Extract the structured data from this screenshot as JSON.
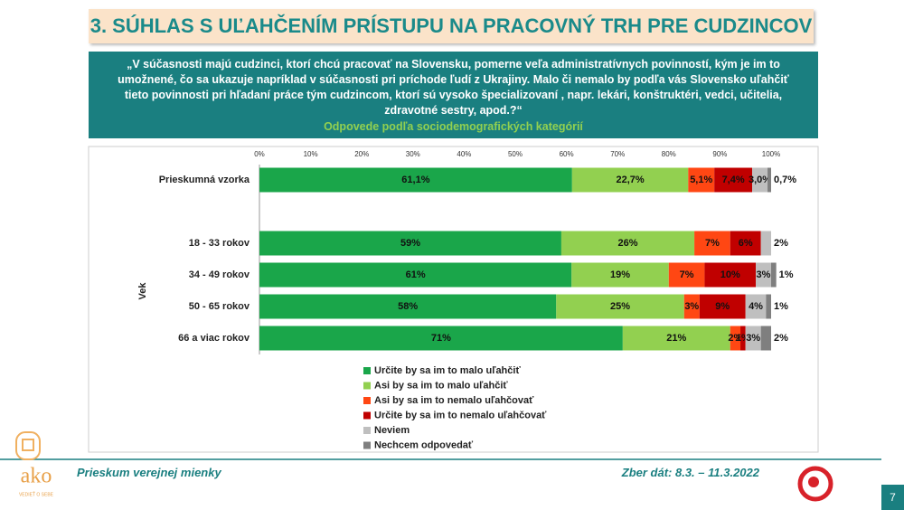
{
  "header": {
    "title": "3. SÚHLAS S UĽAHČENÍM PRÍSTUPU NA PRACOVNÝ TRH PRE CUDZINCOV",
    "question": "„V súčasnosti majú cudzinci, ktorí chcú pracovať na Slovensku, pomerne veľa administratívnych povinností, kým je im to umožnené, čo sa ukazuje napríklad v súčasnosti pri príchode ľudí z Ukrajiny. Malo či nemalo by podľa vás Slovensko uľahčiť tieto povinnosti pri hľadaní práce tým cudzincom, ktorí sú vysoko špecializovaní , napr. lekári, konštruktéri, vedci, učitelia, zdravotné sestry, apod.?“",
    "subtitle": "Odpovede podľa sociodemografických kategórií"
  },
  "chart_data": {
    "type": "bar",
    "orientation": "horizontal",
    "stacked": true,
    "categories": [
      "Prieskumná vzorka",
      null,
      "18 - 33 rokov",
      "34 - 49 rokov",
      "50 - 65 rokov",
      "66 a viac rokov"
    ],
    "group_label": "Vek",
    "xlim": [
      0,
      100
    ],
    "xticks": [
      {
        "value": 0,
        "label": "0%"
      },
      {
        "value": 10,
        "label": "10%"
      },
      {
        "value": 20,
        "label": "20%"
      },
      {
        "value": 30,
        "label": "30%"
      },
      {
        "value": 40,
        "label": "40%"
      },
      {
        "value": 50,
        "label": "50%"
      },
      {
        "value": 60,
        "label": "60%"
      },
      {
        "value": 70,
        "label": "70%"
      },
      {
        "value": 80,
        "label": "80%"
      },
      {
        "value": 90,
        "label": "90%"
      },
      {
        "value": 100,
        "label": "100%"
      }
    ],
    "grid": false,
    "series": [
      {
        "name": "Určite by sa im to malo uľahčiť",
        "color": "#1aa64a",
        "values": [
          61.1,
          null,
          59,
          61,
          58,
          71
        ],
        "value_labels": [
          "61,1%",
          null,
          "59%",
          "61%",
          "58%",
          "71%"
        ]
      },
      {
        "name": "Asi by sa im to malo uľahčiť",
        "color": "#92d050",
        "values": [
          22.7,
          null,
          26,
          19,
          25,
          21
        ],
        "value_labels": [
          "22,7%",
          null,
          "26%",
          "19%",
          "25%",
          "21%"
        ]
      },
      {
        "name": "Asi by sa im to nemalo uľahčovať",
        "color": "#ff4713",
        "values": [
          5.1,
          null,
          7,
          7,
          3,
          2
        ],
        "value_labels": [
          "5,1%",
          null,
          "7%",
          "7%",
          "3%",
          "2%"
        ]
      },
      {
        "name": "Určite by sa im to nemalo uľahčovať",
        "color": "#c00000",
        "values": [
          7.4,
          null,
          6,
          10,
          9,
          1
        ],
        "value_labels": [
          "7,4%",
          null,
          "6%",
          "10%",
          "9%",
          "1%"
        ]
      },
      {
        "name": "Neviem",
        "color": "#bfbfbf",
        "values": [
          3.0,
          null,
          2,
          3,
          4,
          3
        ],
        "value_labels": [
          "3,0%",
          null,
          "2%",
          "3%",
          "4%",
          "3%"
        ]
      },
      {
        "name": "Nechcem odpovedať",
        "color": "#7f7f7f",
        "values": [
          0.7,
          null,
          null,
          1,
          1,
          2
        ],
        "value_labels": [
          "0,7%",
          null,
          null,
          "1%",
          "1%",
          "2%"
        ]
      }
    ]
  },
  "footer": {
    "left": "Prieskum verejnej mienky",
    "right": "Zber dát: 8.3. – 11.3.2022",
    "page": "7",
    "logo": "ako",
    "logo_sub": "VEDIEŤ O SEBE"
  }
}
